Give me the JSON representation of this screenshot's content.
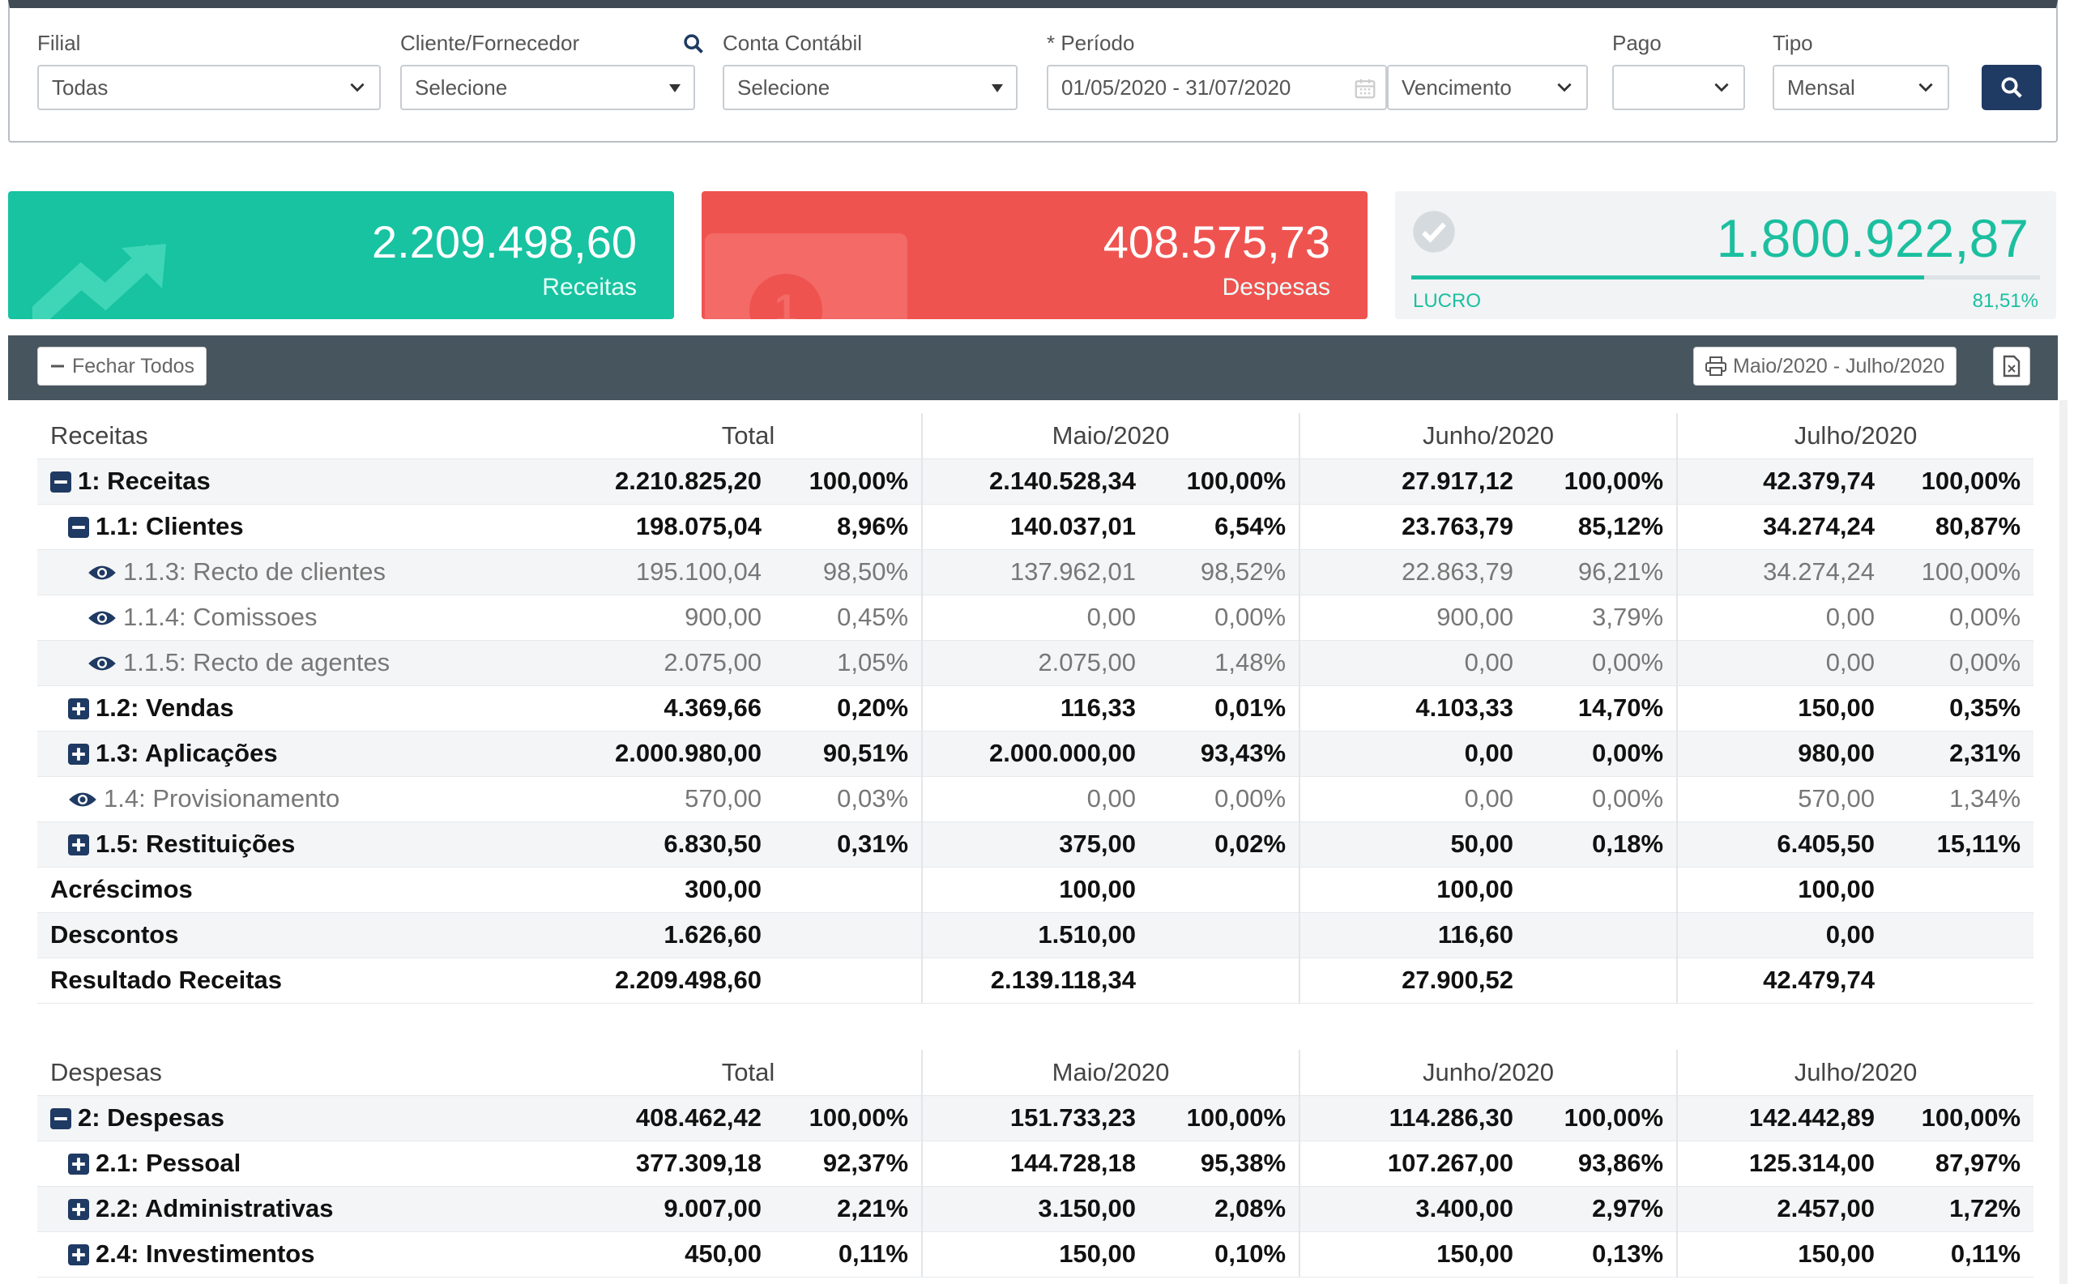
{
  "filters": {
    "filial": {
      "label": "Filial",
      "value": "Todas"
    },
    "cliente": {
      "label": "Cliente/Fornecedor",
      "value": "Selecione"
    },
    "conta": {
      "label": "Conta Contábil",
      "value": "Selecione"
    },
    "periodo": {
      "label": "* Período",
      "value": "01/05/2020 - 31/07/2020",
      "tipo_data": "Vencimento"
    },
    "pago": {
      "label": "Pago",
      "value": ""
    },
    "tipo": {
      "label": "Tipo",
      "value": "Mensal"
    }
  },
  "cards": {
    "receitas": {
      "value": "2.209.498,60",
      "label": "Receitas",
      "color": "#17c3a1"
    },
    "despesas": {
      "value": "408.575,73",
      "label": "Despesas",
      "color": "#ef5350"
    },
    "lucro": {
      "value": "1.800.922,87",
      "label": "LUCRO",
      "pct": "81,51%",
      "fraction": 0.8151
    }
  },
  "toolbar": {
    "fechar_label": "Fechar Todos",
    "periodo_label": "Maio/2020 - Julho/2020"
  },
  "receitas_table": {
    "headers": [
      "Receitas",
      "Total",
      "Maio/2020",
      "Junho/2020",
      "Julho/2020"
    ],
    "rows": [
      {
        "label": "1: Receitas",
        "icon": "minus",
        "level": 0,
        "style": "bold",
        "vals": [
          "2.210.825,20",
          "100,00%",
          "2.140.528,34",
          "100,00%",
          "27.917,12",
          "100,00%",
          "42.379,74",
          "100,00%"
        ]
      },
      {
        "label": "1.1: Clientes",
        "icon": "minus",
        "level": 1,
        "style": "bold",
        "vals": [
          "198.075,04",
          "8,96%",
          "140.037,01",
          "6,54%",
          "23.763,79",
          "85,12%",
          "34.274,24",
          "80,87%"
        ]
      },
      {
        "label": "1.1.3: Recto de clientes",
        "icon": "eye",
        "level": 2,
        "style": "light",
        "vals": [
          "195.100,04",
          "98,50%",
          "137.962,01",
          "98,52%",
          "22.863,79",
          "96,21%",
          "34.274,24",
          "100,00%"
        ]
      },
      {
        "label": "1.1.4: Comissoes",
        "icon": "eye",
        "level": 2,
        "style": "light",
        "vals": [
          "900,00",
          "0,45%",
          "0,00",
          "0,00%",
          "900,00",
          "3,79%",
          "0,00",
          "0,00%"
        ]
      },
      {
        "label": "1.1.5: Recto de agentes",
        "icon": "eye",
        "level": 2,
        "style": "light",
        "vals": [
          "2.075,00",
          "1,05%",
          "2.075,00",
          "1,48%",
          "0,00",
          "0,00%",
          "0,00",
          "0,00%"
        ]
      },
      {
        "label": "1.2: Vendas",
        "icon": "plus",
        "level": 1,
        "style": "bold",
        "vals": [
          "4.369,66",
          "0,20%",
          "116,33",
          "0,01%",
          "4.103,33",
          "14,70%",
          "150,00",
          "0,35%"
        ]
      },
      {
        "label": "1.3: Aplicações",
        "icon": "plus",
        "level": 1,
        "style": "bold",
        "vals": [
          "2.000.980,00",
          "90,51%",
          "2.000.000,00",
          "93,43%",
          "0,00",
          "0,00%",
          "980,00",
          "2,31%"
        ]
      },
      {
        "label": "1.4: Provisionamento",
        "icon": "eye",
        "level": 1,
        "style": "light",
        "vals": [
          "570,00",
          "0,03%",
          "0,00",
          "0,00%",
          "0,00",
          "0,00%",
          "570,00",
          "1,34%"
        ]
      },
      {
        "label": "1.5: Restituições",
        "icon": "plus",
        "level": 1,
        "style": "bold",
        "vals": [
          "6.830,50",
          "0,31%",
          "375,00",
          "0,02%",
          "50,00",
          "0,18%",
          "6.405,50",
          "15,11%"
        ]
      },
      {
        "label": "Acréscimos",
        "icon": "",
        "level": 0,
        "style": "bold",
        "vals": [
          "300,00",
          "",
          "100,00",
          "",
          "100,00",
          "",
          "100,00",
          ""
        ]
      },
      {
        "label": "Descontos",
        "icon": "",
        "level": 0,
        "style": "bold",
        "vals": [
          "1.626,60",
          "",
          "1.510,00",
          "",
          "116,60",
          "",
          "0,00",
          ""
        ]
      },
      {
        "label": "Resultado Receitas",
        "icon": "",
        "level": 0,
        "style": "bold",
        "vals": [
          "2.209.498,60",
          "",
          "2.139.118,34",
          "",
          "27.900,52",
          "",
          "42.479,74",
          ""
        ]
      }
    ]
  },
  "despesas_table": {
    "headers": [
      "Despesas",
      "Total",
      "Maio/2020",
      "Junho/2020",
      "Julho/2020"
    ],
    "rows": [
      {
        "label": "2: Despesas",
        "icon": "minus",
        "level": 0,
        "style": "bold",
        "vals": [
          "408.462,42",
          "100,00%",
          "151.733,23",
          "100,00%",
          "114.286,30",
          "100,00%",
          "142.442,89",
          "100,00%"
        ]
      },
      {
        "label": "2.1: Pessoal",
        "icon": "plus",
        "level": 1,
        "style": "bold",
        "vals": [
          "377.309,18",
          "92,37%",
          "144.728,18",
          "95,38%",
          "107.267,00",
          "93,86%",
          "125.314,00",
          "87,97%"
        ]
      },
      {
        "label": "2.2: Administrativas",
        "icon": "plus",
        "level": 1,
        "style": "bold",
        "vals": [
          "9.007,00",
          "2,21%",
          "3.150,00",
          "2,08%",
          "3.400,00",
          "2,97%",
          "2.457,00",
          "1,72%"
        ]
      },
      {
        "label": "2.4: Investimentos",
        "icon": "plus",
        "level": 1,
        "style": "bold",
        "vals": [
          "450,00",
          "0,11%",
          "150,00",
          "0,10%",
          "150,00",
          "0,13%",
          "150,00",
          "0,11%"
        ]
      }
    ]
  }
}
